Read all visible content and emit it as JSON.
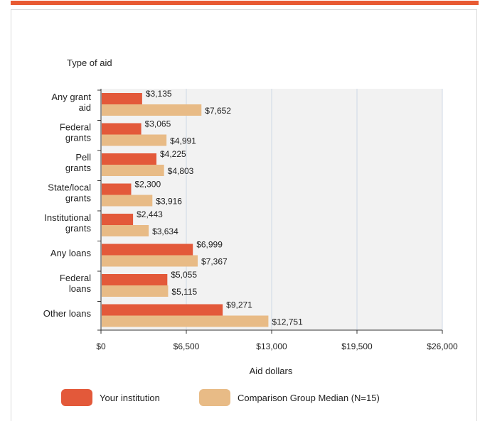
{
  "chart_data": {
    "type": "bar",
    "orientation": "horizontal",
    "title": "Type of aid",
    "xlabel": "Aid dollars",
    "ylabel": "",
    "xlim": [
      0,
      26000
    ],
    "xticks": [
      0,
      6500,
      13000,
      19500,
      26000
    ],
    "xtick_labels": [
      "$0",
      "$6,500",
      "$13,000",
      "$19,500",
      "$26,000"
    ],
    "categories": [
      [
        "Any grant",
        "aid"
      ],
      [
        "Federal",
        "grants"
      ],
      [
        "Pell",
        "grants"
      ],
      [
        "State/local",
        "grants"
      ],
      [
        "Institutional",
        "grants"
      ],
      [
        "Any loans"
      ],
      [
        "Federal",
        "loans"
      ],
      [
        "Other loans"
      ]
    ],
    "series": [
      {
        "name": "Your institution",
        "color": "#e3593a",
        "values": [
          3135,
          3065,
          4225,
          2300,
          2443,
          6999,
          5055,
          9271
        ],
        "labels": [
          "$3,135",
          "$3,065",
          "$4,225",
          "$2,300",
          "$2,443",
          "$6,999",
          "$5,055",
          "$9,271"
        ]
      },
      {
        "name": "Comparison Group Median (N=15)",
        "color": "#e8bb86",
        "values": [
          7652,
          4991,
          4803,
          3916,
          3634,
          7367,
          5115,
          12751
        ],
        "labels": [
          "$7,652",
          "$4,991",
          "$4,803",
          "$3,916",
          "$3,634",
          "$7,367",
          "$5,115",
          "$12,751"
        ]
      }
    ],
    "grid": true,
    "legend_position": "bottom"
  }
}
